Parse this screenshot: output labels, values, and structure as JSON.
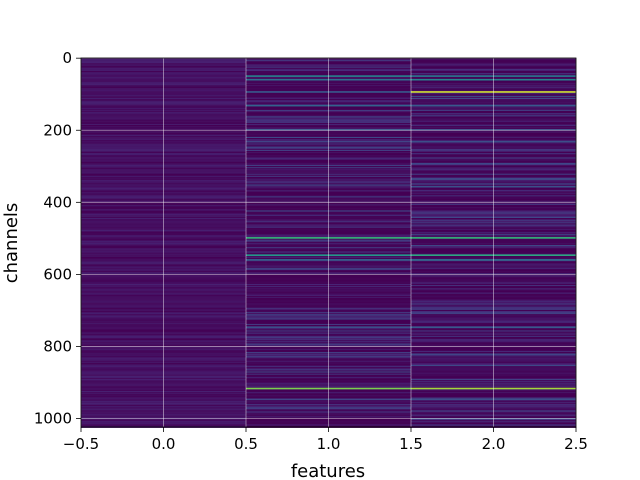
{
  "chart_data": {
    "type": "heatmap",
    "title": "",
    "xlabel": "features",
    "ylabel": "channels",
    "x_ticks": [
      "−0.5",
      "0.0",
      "0.5",
      "1.0",
      "1.5",
      "2.0",
      "2.5"
    ],
    "x_tick_values": [
      -0.5,
      0.0,
      0.5,
      1.0,
      1.5,
      2.0,
      2.5
    ],
    "y_ticks": [
      "0",
      "200",
      "400",
      "600",
      "800",
      "1000"
    ],
    "y_tick_values": [
      0,
      200,
      400,
      600,
      800,
      1000
    ],
    "xlim": [
      -0.5,
      2.5
    ],
    "ylim": [
      1023.5,
      -0.5
    ],
    "columns": [
      0,
      1,
      2
    ],
    "n_channels": 1024,
    "colormap": "viridis",
    "grid": true,
    "background_color": "#440154",
    "strong_channels": [
      {
        "channel": 48,
        "values": [
          0.05,
          0.55,
          0.5
        ]
      },
      {
        "channel": 58,
        "values": [
          0.05,
          0.45,
          0.55
        ]
      },
      {
        "channel": 92,
        "values": [
          0.05,
          0.35,
          0.95
        ]
      },
      {
        "channel": 130,
        "values": [
          0.05,
          0.4,
          0.35
        ]
      },
      {
        "channel": 197,
        "values": [
          0.05,
          0.35,
          0.3
        ]
      },
      {
        "channel": 230,
        "values": [
          0.05,
          0.25,
          0.3
        ]
      },
      {
        "channel": 355,
        "values": [
          0.05,
          0.1,
          0.3
        ]
      },
      {
        "channel": 497,
        "values": [
          0.05,
          0.75,
          0.75
        ]
      },
      {
        "channel": 545,
        "values": [
          0.05,
          0.65,
          0.7
        ]
      },
      {
        "channel": 558,
        "values": [
          0.05,
          0.4,
          0.45
        ]
      },
      {
        "channel": 745,
        "values": [
          0.05,
          0.3,
          0.35
        ]
      },
      {
        "channel": 820,
        "values": [
          0.05,
          0.15,
          0.25
        ]
      },
      {
        "channel": 915,
        "values": [
          0.05,
          0.85,
          0.9
        ]
      },
      {
        "channel": 945,
        "values": [
          0.05,
          0.25,
          0.3
        ]
      }
    ]
  }
}
